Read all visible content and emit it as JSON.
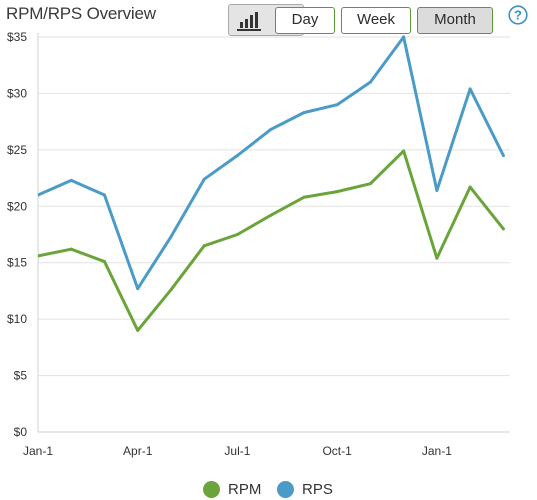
{
  "header": {
    "title": "RPM/RPS Overview",
    "range_buttons": [
      {
        "label": "Day",
        "active": false
      },
      {
        "label": "Week",
        "active": false
      },
      {
        "label": "Month",
        "active": true
      }
    ],
    "chart_type_icon": "bar-chart-icon",
    "help_icon": "question-circle-icon"
  },
  "colors": {
    "accent_green": "#5b9a32",
    "rpm": "#6aa43a",
    "rps": "#4b9bc8",
    "grid": "#e2e2e2"
  },
  "chart_data": {
    "type": "line",
    "title": "RPM/RPS Overview",
    "xlabel": "",
    "ylabel": "",
    "x": [
      0,
      1,
      2,
      3,
      4,
      5,
      6,
      7,
      8,
      9,
      10,
      11,
      12,
      13,
      14
    ],
    "x_tick_labels": [
      {
        "label": "Jan-1",
        "x": 0
      },
      {
        "label": "Apr-1",
        "x": 3
      },
      {
        "label": "Jul-1",
        "x": 6
      },
      {
        "label": "Oct-1",
        "x": 9
      },
      {
        "label": "Jan-1",
        "x": 12
      }
    ],
    "y_tick_labels": [
      "$0",
      "$5",
      "$10",
      "$15",
      "$20",
      "$25",
      "$30",
      "$35"
    ],
    "y_ticks": [
      0,
      5,
      10,
      15,
      20,
      25,
      30,
      35
    ],
    "ylim": [
      0,
      35
    ],
    "xlim": [
      0,
      14.2
    ],
    "grid": "horizontal",
    "legend_position": "bottom",
    "series": [
      {
        "name": "RPM",
        "color": "#6aa43a",
        "values": [
          15.6,
          16.2,
          15.1,
          9.0,
          12.6,
          16.5,
          17.5,
          19.2,
          20.8,
          21.3,
          22.0,
          24.9,
          15.4,
          21.7,
          18.0
        ]
      },
      {
        "name": "RPS",
        "color": "#4b9bc8",
        "values": [
          21.0,
          22.3,
          21.0,
          12.7,
          17.3,
          22.4,
          24.5,
          26.8,
          28.3,
          29.0,
          31.0,
          35.0,
          21.4,
          30.4,
          24.5
        ]
      }
    ]
  }
}
